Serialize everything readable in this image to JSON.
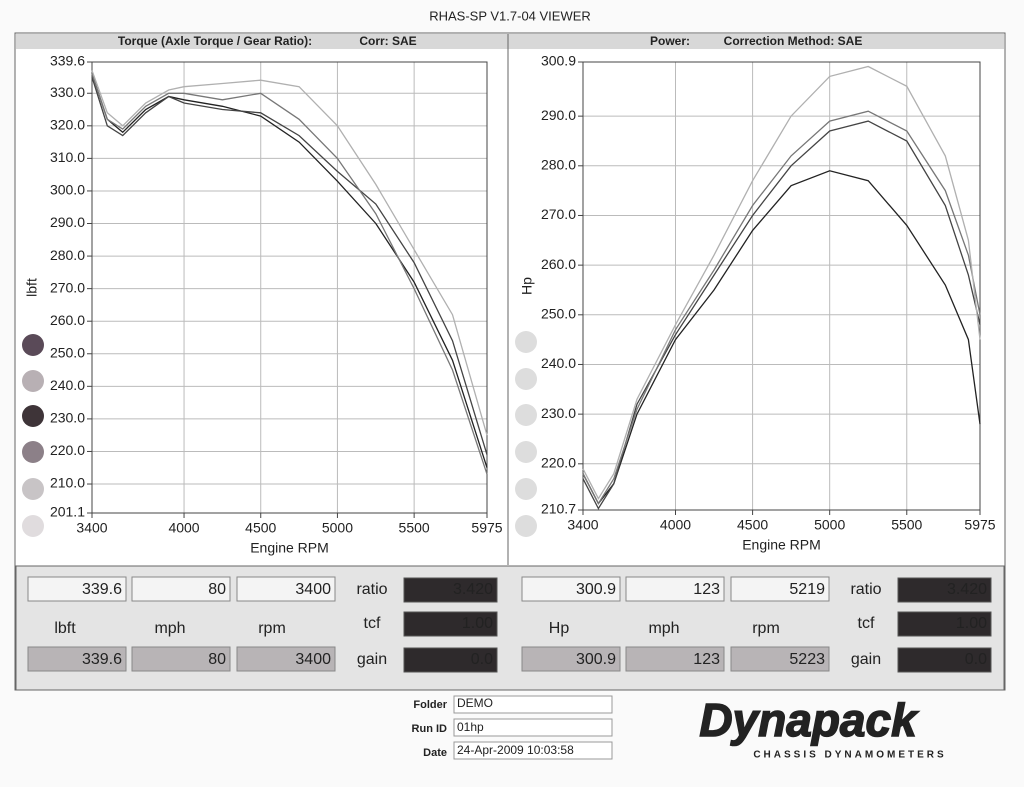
{
  "window": {
    "title": "RHAS-SP V1.7-04  VIEWER"
  },
  "chart_data": [
    {
      "type": "line",
      "title": "Torque (Axle Torque / Gear Ratio):",
      "subtitle": "Corr: SAE",
      "y_label": "lbft",
      "x_label": "Engine RPM",
      "grid": true,
      "x": [
        3400,
        3500,
        3600,
        3750,
        3900,
        4000,
        4250,
        4500,
        4750,
        5000,
        5250,
        5500,
        5750,
        5975
      ],
      "series": [
        {
          "color": "#222222",
          "values": [
            336,
            322,
            318,
            325,
            329,
            328,
            326,
            323,
            315,
            303,
            290,
            272,
            248,
            215
          ]
        },
        {
          "color": "#444444",
          "values": [
            335,
            320,
            317,
            324,
            329,
            327,
            325,
            324,
            317,
            306,
            296,
            278,
            254,
            219
          ]
        },
        {
          "color": "#777777",
          "values": [
            336,
            322,
            319,
            326,
            330,
            330,
            328,
            330,
            322,
            310,
            293,
            270,
            245,
            213
          ]
        },
        {
          "color": "#b0b0b0",
          "values": [
            337,
            324,
            320,
            327,
            331,
            332,
            333,
            334,
            332,
            320,
            302,
            282,
            262,
            225
          ]
        }
      ],
      "xlim": [
        3400,
        5975
      ],
      "xticks": [
        3400,
        4000,
        4500,
        5000,
        5500,
        5975
      ],
      "ylim": [
        201.1,
        339.6
      ],
      "yticks": [
        201.1,
        {
          "value": 210,
          "label": "210.0"
        },
        {
          "value": 220,
          "label": "220.0"
        },
        {
          "value": 230,
          "label": "230.0"
        },
        {
          "value": 240,
          "label": "240.0"
        },
        {
          "value": 250,
          "label": "250.0"
        },
        {
          "value": 260,
          "label": "260.0"
        },
        {
          "value": 270,
          "label": "270.0"
        },
        {
          "value": 280,
          "label": "280.0"
        },
        {
          "value": 290,
          "label": "290.0"
        },
        {
          "value": 300,
          "label": "300.0"
        },
        {
          "value": 310,
          "label": "310.0"
        },
        {
          "value": 320,
          "label": "320.0"
        },
        {
          "value": 330,
          "label": "330.0"
        },
        339.6
      ]
    },
    {
      "type": "line",
      "title": "Power:",
      "subtitle": "Correction Method: SAE",
      "y_label": "Hp",
      "x_label": "Engine RPM",
      "grid": true,
      "x": [
        3400,
        3500,
        3600,
        3750,
        4000,
        4250,
        4500,
        4750,
        5000,
        5250,
        5500,
        5750,
        5900,
        5975
      ],
      "series": [
        {
          "color": "#222222",
          "values": [
            218,
            212,
            216,
            230,
            245,
            255,
            267,
            276,
            279,
            277,
            268,
            256,
            245,
            228
          ]
        },
        {
          "color": "#444444",
          "values": [
            217,
            211,
            216,
            232,
            246,
            258,
            270,
            280,
            287,
            289,
            285,
            272,
            258,
            248
          ]
        },
        {
          "color": "#777777",
          "values": [
            218,
            212,
            217,
            231,
            247,
            259,
            272,
            282,
            289,
            291,
            287,
            275,
            262,
            250
          ]
        },
        {
          "color": "#b0b0b0",
          "values": [
            219,
            213,
            218,
            233,
            248,
            262,
            277,
            290,
            298,
            300,
            296,
            282,
            265,
            245
          ]
        }
      ],
      "xlim": [
        3400,
        5975
      ],
      "xticks": [
        3400,
        4000,
        4500,
        5000,
        5500,
        5975
      ],
      "ylim": [
        210.7,
        300.9
      ],
      "yticks": [
        210.7,
        {
          "value": 220,
          "label": "220.0"
        },
        {
          "value": 230,
          "label": "230.0"
        },
        {
          "value": 240,
          "label": "240.0"
        },
        {
          "value": 250,
          "label": "250.0"
        },
        {
          "value": 260,
          "label": "260.0"
        },
        {
          "value": 270,
          "label": "270.0"
        },
        {
          "value": 280,
          "label": "280.0"
        },
        {
          "value": 290,
          "label": "290.0"
        },
        300.9
      ]
    }
  ],
  "readouts": [
    {
      "top": [
        "339.6",
        "80",
        "3400"
      ],
      "units": [
        "lbft",
        "mph",
        "rpm"
      ],
      "bottom": [
        "339.6",
        "80",
        "3400"
      ],
      "keys": [
        "ratio",
        "tcf",
        "gain"
      ],
      "settings": [
        "3.420",
        "1.00",
        "0.0"
      ]
    },
    {
      "top": [
        "300.9",
        "123",
        "5219"
      ],
      "units": [
        "Hp",
        "mph",
        "rpm"
      ],
      "bottom": [
        "300.9",
        "123",
        "5223"
      ],
      "keys": [
        "ratio",
        "tcf",
        "gain"
      ],
      "settings": [
        "3.420",
        "1.00",
        "0.0"
      ]
    }
  ],
  "footer": {
    "folder_label": "Folder",
    "folder": "DEMO",
    "run_id_label": "Run ID",
    "run_id": "01hp",
    "date_label": "Date",
    "date": "24-Apr-2009  10:03:58",
    "logo": "Dynapack",
    "tagline": "CHASSIS DYNAMOMETERS"
  }
}
